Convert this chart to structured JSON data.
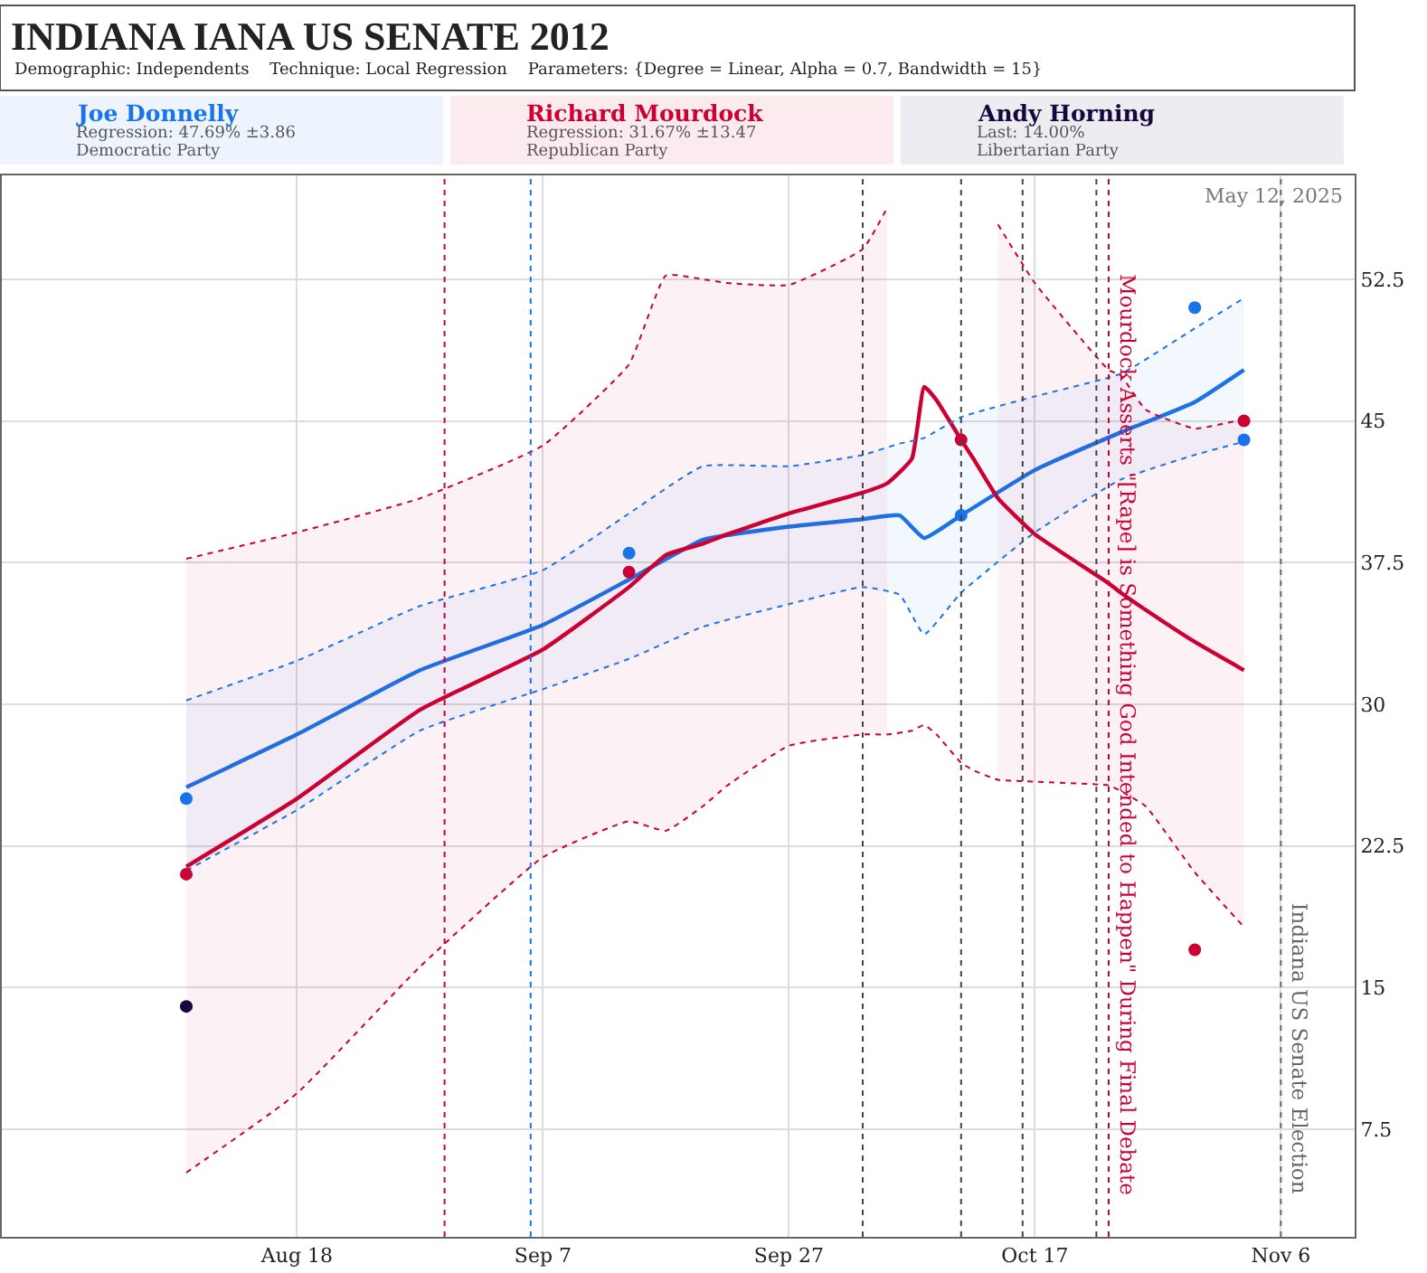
{
  "chart_data": {
    "type": "line",
    "title": "INDIANA IANA US SENATE 2012",
    "subtitle": "Demographic: Independents    Technique: Local Regression    Parameters: {Degree = Linear, Alpha = 0.7, Bandwidth = 15}",
    "annotations": [
      "Regression: 47.69% ±3.86",
      "Democratic Party",
      "Regression: 31.67% ±13.47",
      "Republican Party",
      "Last: 14.00%",
      "Libertarian Party",
      "May 12, 2025"
    ],
    "series": [
      {
        "name": "Joe Donnelly",
        "color": "#1a73e8",
        "marker": "none",
        "x": [
          "2012-08-09",
          "2012-08-18",
          "2012-08-28",
          "2012-09-07",
          "2012-09-14",
          "2012-09-20",
          "2012-09-27",
          "2012-10-03",
          "2012-10-06",
          "2012-10-08",
          "2012-10-11",
          "2012-10-17",
          "2012-10-24",
          "2012-10-30",
          "2012-11-03"
        ],
        "values": [
          25.6,
          28.4,
          31.8,
          34.2,
          36.6,
          38.7,
          39.4,
          39.8,
          40.0,
          38.8,
          40.0,
          42.4,
          44.4,
          46.0,
          47.7
        ],
        "lower": [
          21.2,
          24.4,
          28.6,
          30.8,
          32.4,
          34.1,
          35.3,
          36.2,
          35.8,
          33.7,
          35.9,
          39.1,
          41.9,
          43.2,
          43.9
        ],
        "upper": [
          30.2,
          32.3,
          35.2,
          37.1,
          40.1,
          42.6,
          42.6,
          43.2,
          43.8,
          44.1,
          45.2,
          46.3,
          47.5,
          49.9,
          51.5
        ]
      },
      {
        "name": "Richard Mourdock",
        "color": "#cc0033",
        "marker": "none",
        "x": [
          "2012-08-09",
          "2012-08-18",
          "2012-08-28",
          "2012-09-07",
          "2012-09-14",
          "2012-09-17",
          "2012-09-20",
          "2012-09-22",
          "2012-09-27",
          "2012-10-03",
          "2012-10-05",
          "2012-10-07",
          "2012-10-08",
          "2012-10-09",
          "2012-10-11",
          "2012-10-12",
          "2012-10-14",
          "2012-10-17",
          "2012-10-23",
          "2012-10-24",
          "2012-10-26",
          "2012-10-30",
          "2012-11-03"
        ],
        "values": [
          21.4,
          25.0,
          29.7,
          32.9,
          36.2,
          37.9,
          38.5,
          39.0,
          40.1,
          41.2,
          41.7,
          43.0,
          46.8,
          46.1,
          44.0,
          43.0,
          40.9,
          39.0,
          36.4,
          35.9,
          35.0,
          33.3,
          31.8
        ],
        "lower": [
          5.2,
          9.4,
          16.1,
          21.9,
          23.8,
          23.3,
          24.6,
          25.7,
          27.8,
          28.4,
          28.4,
          null,
          null,
          null,
          null,
          null,
          26.0,
          25.9,
          25.7,
          25.4,
          24.6,
          21.1,
          18.2
        ],
        "upper": [
          37.7,
          39.1,
          40.9,
          43.7,
          48.0,
          52.7,
          52.5,
          52.3,
          52.2,
          54.1,
          56.3,
          null,
          null,
          null,
          null,
          null,
          55.4,
          52.3,
          47.7,
          47.4,
          45.6,
          44.6,
          45.1
        ]
      },
      {
        "color": "#1a73e8",
        "marker": "none",
        "line_style": "dotted",
        "x": [
          "2012-08-09",
          "2012-08-18",
          "2012-08-28",
          "2012-09-07",
          "2012-09-14",
          "2012-09-20",
          "2012-09-27",
          "2012-10-03",
          "2012-10-06",
          "2012-10-08",
          "2012-10-11",
          "2012-10-17",
          "2012-10-24",
          "2012-10-30",
          "2012-11-03"
        ],
        "values": [
          21.2,
          24.4,
          28.6,
          30.8,
          32.4,
          34.1,
          35.3,
          36.2,
          35.8,
          33.7,
          35.9,
          39.1,
          41.9,
          43.2,
          43.9
        ]
      },
      {
        "color": "#1a73e8",
        "marker": "none",
        "line_style": "dotted",
        "x": [
          "2012-08-09",
          "2012-08-18",
          "2012-08-28",
          "2012-09-07",
          "2012-09-14",
          "2012-09-20",
          "2012-09-27",
          "2012-10-03",
          "2012-10-06",
          "2012-10-08",
          "2012-10-11",
          "2012-10-17",
          "2012-10-24",
          "2012-10-30",
          "2012-11-03"
        ],
        "values": [
          30.2,
          32.3,
          35.2,
          37.1,
          40.1,
          42.6,
          42.6,
          43.2,
          43.8,
          44.1,
          45.2,
          46.3,
          47.5,
          49.9,
          51.5
        ]
      },
      {
        "color": "#cc0033",
        "marker": "none",
        "line_style": "dotted",
        "x": [
          "2012-08-09",
          "2012-08-18",
          "2012-08-28",
          "2012-09-07",
          "2012-09-14",
          "2012-09-17",
          "2012-09-20",
          "2012-09-22",
          "2012-09-27",
          "2012-10-03",
          "2012-10-05",
          "2012-10-07",
          "2012-10-08",
          "2012-10-09",
          "2012-10-11",
          "2012-10-12",
          "2012-10-14",
          "2012-10-17",
          "2012-10-23",
          "2012-10-24",
          "2012-10-26",
          "2012-10-30",
          "2012-11-03"
        ],
        "values": [
          5.2,
          9.4,
          16.1,
          21.9,
          23.8,
          23.3,
          24.6,
          25.7,
          27.8,
          28.4,
          28.4,
          28.6,
          28.9,
          28.4,
          26.9,
          26.5,
          26.0,
          25.9,
          25.7,
          25.4,
          24.6,
          21.1,
          18.2
        ]
      },
      {
        "color": "#cc0033",
        "marker": "none",
        "line_style": "dotted",
        "x": [
          "2012-08-09",
          "2012-08-18",
          "2012-08-28",
          "2012-09-07",
          "2012-09-14",
          "2012-09-17",
          "2012-09-20",
          "2012-09-22",
          "2012-09-27",
          "2012-10-03",
          "2012-10-05",
          "2012-10-07",
          "2012-10-08",
          "2012-10-09",
          "2012-10-11",
          "2012-10-12",
          "2012-10-14",
          "2012-10-17",
          "2012-10-23",
          "2012-10-24",
          "2012-10-26",
          "2012-10-30",
          "2012-11-03"
        ],
        "values": [
          37.7,
          39.1,
          40.9,
          43.7,
          48.0,
          52.7,
          52.5,
          52.3,
          52.2,
          54.1,
          56.3,
          null,
          null,
          null,
          null,
          null,
          55.4,
          52.3,
          47.7,
          47.4,
          45.6,
          44.6,
          45.1
        ]
      },
      {
        "name": "Andy Horning",
        "type": "scatter",
        "color": "#14083c",
        "x": [
          "2012-08-09"
        ],
        "values": [
          14
        ]
      },
      {
        "type": "scatter",
        "color": "#1a73e8",
        "x": [
          "2012-08-09",
          "2012-09-14",
          "2012-10-11",
          "2012-10-30",
          "2012-11-03"
        ],
        "values": [
          25,
          38,
          40,
          51,
          44
        ]
      },
      {
        "type": "scatter",
        "color": "#cc0033",
        "x": [
          "2012-08-09",
          "2012-09-14",
          "2012-10-11",
          "2012-10-30",
          "2012-11-03"
        ],
        "values": [
          21,
          37,
          44,
          17,
          45
        ]
      }
    ],
    "xlim": [
      "2012-07-25",
      "2012-11-12"
    ],
    "xticks": [
      {
        "value": "2012-08-18",
        "label": "Aug 18"
      },
      {
        "value": "2012-09-07",
        "label": "Sep 7"
      },
      {
        "value": "2012-09-27",
        "label": "Sep 27"
      },
      {
        "value": "2012-10-17",
        "label": "Oct 17"
      },
      {
        "value": "2012-11-06",
        "label": "Nov 6"
      }
    ],
    "ylim": [
      1.8,
      58
    ],
    "yticks": [
      7.5,
      15,
      22.5,
      30,
      37.5,
      45,
      52.5
    ],
    "ref_lines": [
      {
        "axis": "x",
        "value": "2012-08-30",
        "color": "#cc0033",
        "line_style": "dotted"
      },
      {
        "axis": "x",
        "value": "2012-09-06",
        "color": "#1a73e8",
        "line_style": "dotted"
      },
      {
        "axis": "x",
        "value": "2012-10-03",
        "color": "#444444",
        "line_style": "dotted"
      },
      {
        "axis": "x",
        "value": "2012-10-11",
        "color": "#444444",
        "line_style": "dotted"
      },
      {
        "axis": "x",
        "value": "2012-10-16",
        "color": "#444444",
        "line_style": "dotted"
      },
      {
        "axis": "x",
        "value": "2012-10-22",
        "color": "#444444",
        "line_style": "dotted"
      },
      {
        "axis": "x",
        "value": "2012-10-23",
        "color": "#cc0033",
        "line_style": "dotted",
        "label": "Mourdock Asserts \"[Rape] is Something God Intended to Happen\" During Final Debate"
      },
      {
        "axis": "x",
        "value": "2012-11-06",
        "color": "#666666",
        "line_style": "dotted",
        "label": "Indiana US Senate Election"
      }
    ],
    "grid": true,
    "legend": "top",
    "marker": "circle",
    "line_style": "solid"
  }
}
